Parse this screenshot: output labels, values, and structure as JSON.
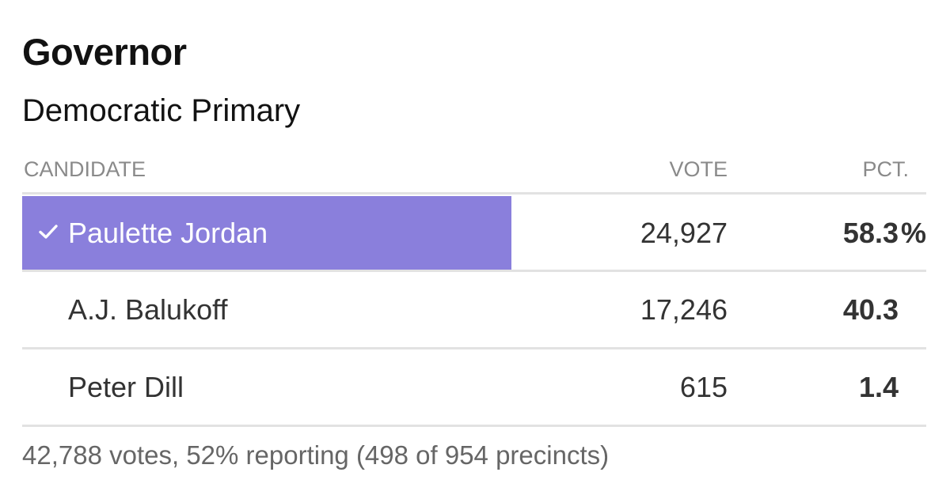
{
  "race": {
    "title": "Governor",
    "subtitle": "Democratic Primary"
  },
  "table": {
    "headers": {
      "candidate": "CANDIDATE",
      "vote": "VOTE",
      "pct": "PCT."
    },
    "rows": [
      {
        "name": "Paulette Jordan",
        "votes": "24,927",
        "pct": "58.3",
        "pct_symbol": "%",
        "pct_value": 58.3,
        "winner": true,
        "winner_icon": "checkmark-icon"
      },
      {
        "name": "A.J. Balukoff",
        "votes": "17,246",
        "pct": "40.3",
        "pct_value": 40.3,
        "winner": false
      },
      {
        "name": "Peter Dill",
        "votes": "615",
        "pct": "1.4",
        "pct_value": 1.4,
        "winner": false
      }
    ]
  },
  "footer": {
    "summary": "42,788 votes, 52% reporting (498 of 954 precincts)"
  },
  "colors": {
    "winner_bar": "#8a7fdc",
    "winner_text": "#ffffff",
    "header_text": "#8a8a8a",
    "divider": "#e2e2e2",
    "footer_text": "#666666"
  }
}
